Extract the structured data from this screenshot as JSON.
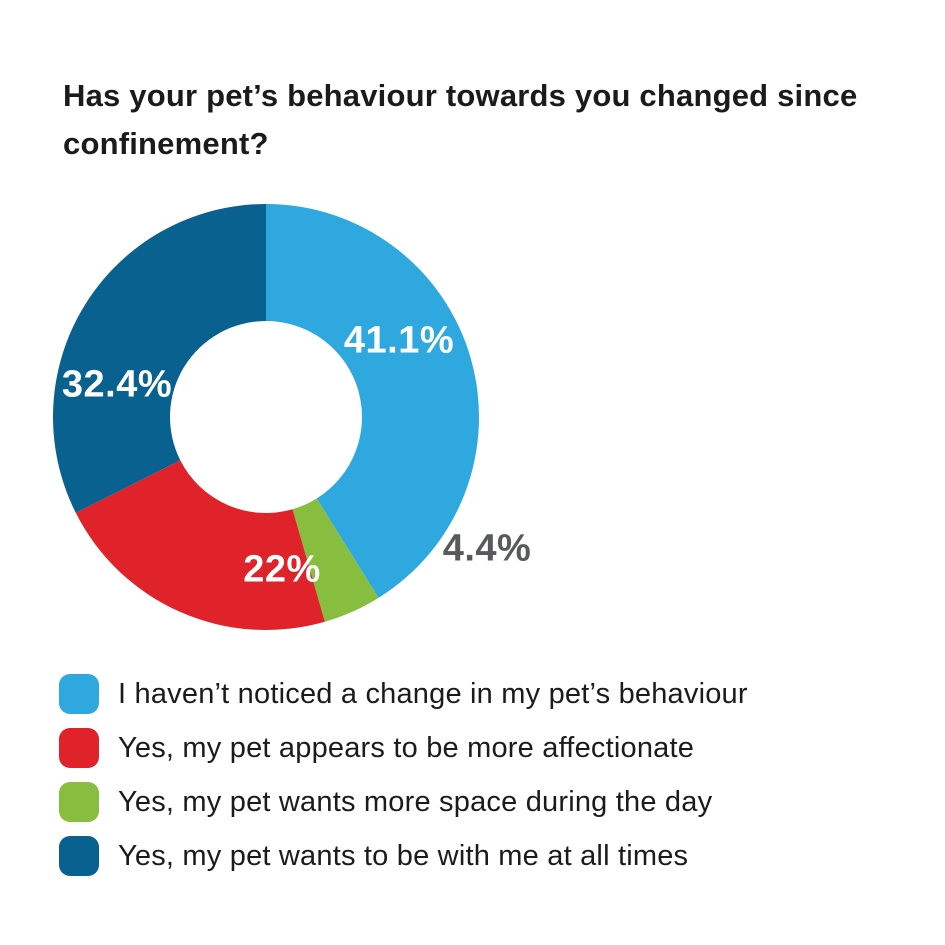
{
  "page": {
    "background": "#FFFFFF"
  },
  "title": {
    "text": "Has your pet’s behaviour towards you changed since confinement?"
  },
  "chart_data": {
    "type": "pie",
    "subtype": "donut",
    "title": "Has your pet’s behaviour towards you changed since confinement?",
    "direction": "clockwise",
    "start_angle_deg": 0,
    "inner_radius_ratio": 0.45,
    "legend_position": "bottom-left",
    "slices": [
      {
        "label": "I haven’t noticed a change in my pet’s behaviour",
        "value": 41.1,
        "display": "41.1%",
        "color": "#2FA8E0",
        "label_color": "#FFFFFF",
        "label_placement": "inside"
      },
      {
        "label": "Yes, my pet wants more space during the day",
        "value": 4.4,
        "display": "4.4%",
        "color": "#87BE3F",
        "label_color": "#58595B",
        "label_placement": "outside"
      },
      {
        "label": "Yes, my pet appears to be more affectionate",
        "value": 22,
        "display": "22%",
        "color": "#E0232B",
        "label_color": "#FFFFFF",
        "label_placement": "inside"
      },
      {
        "label": "Yes, my pet wants to be with me at all times",
        "value": 32.4,
        "display": "32.4%",
        "color": "#09618F",
        "label_color": "#FFFFFF",
        "label_placement": "inside"
      }
    ]
  },
  "legend": {
    "items": [
      {
        "label": "I haven’t noticed a change in my pet’s behaviour",
        "color": "#2FA8E0"
      },
      {
        "label": "Yes, my pet appears to be more affectionate",
        "color": "#E0232B"
      },
      {
        "label": "Yes, my pet wants more space during the day",
        "color": "#87BE3F"
      },
      {
        "label": "Yes, my pet wants to be with me at all times",
        "color": "#09618F"
      }
    ]
  }
}
